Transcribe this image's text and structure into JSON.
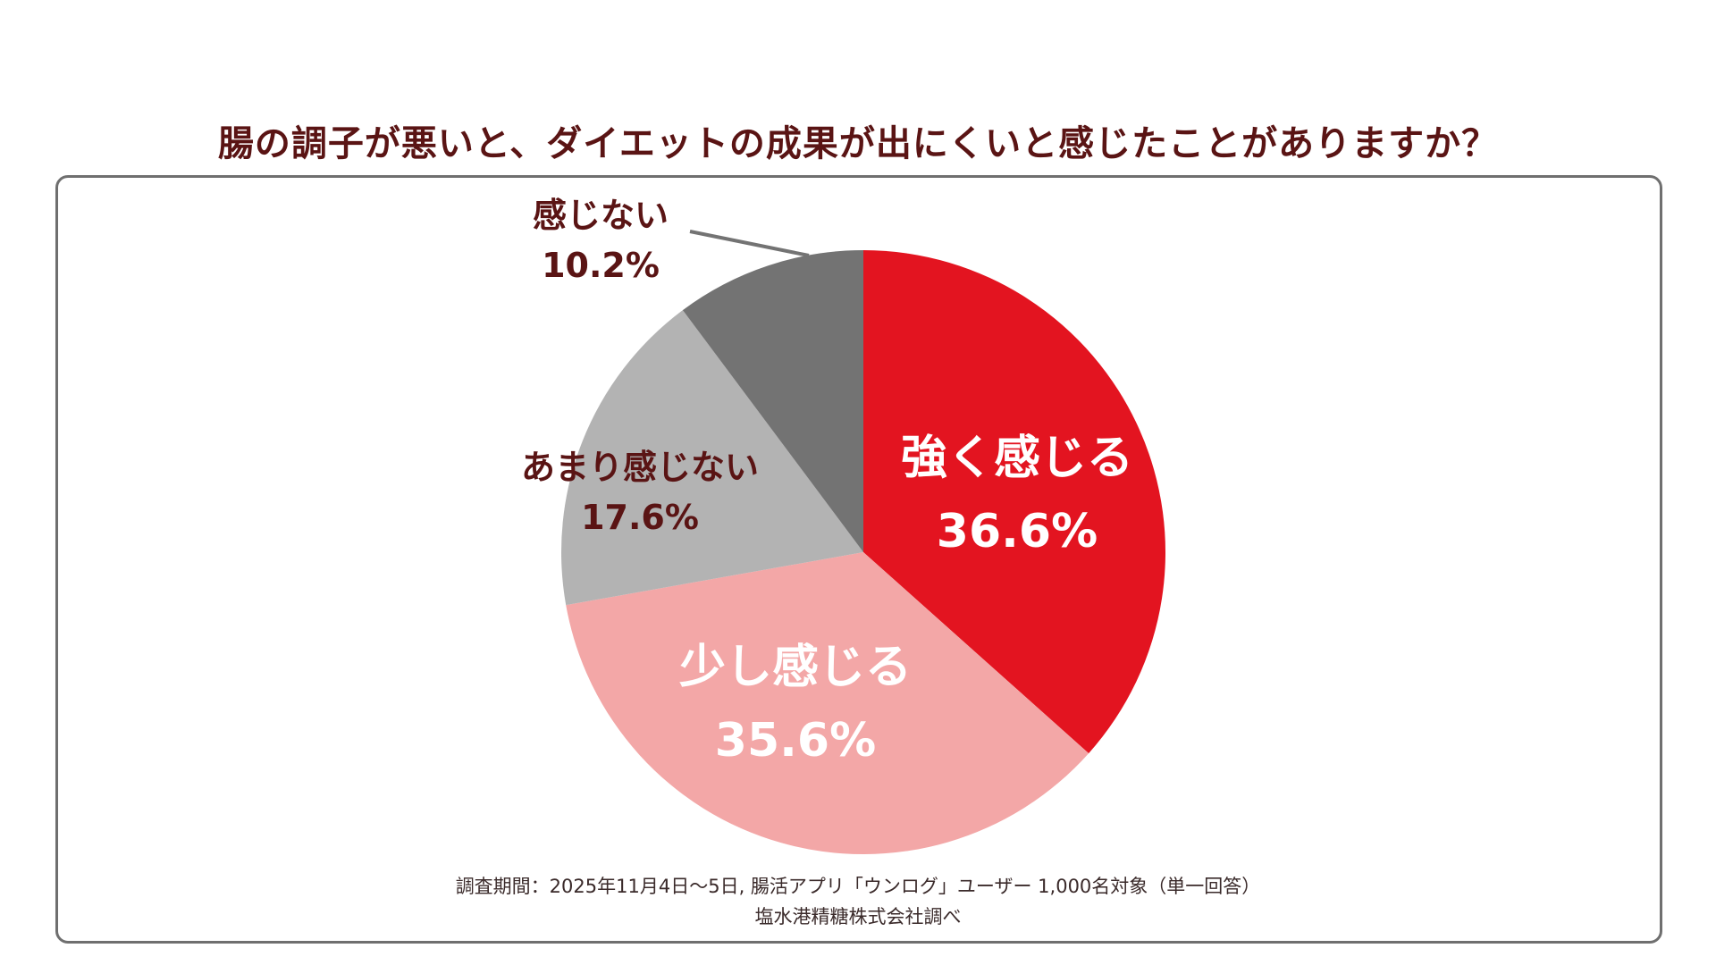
{
  "chart_data": {
    "type": "pie",
    "title": "腸の調子が悪いと、ダイエットの成果が出にくいと感じたことがありますか？",
    "slices": [
      {
        "label": "強く感じる",
        "value": 36.6,
        "value_label": "36.6%",
        "color": "#e31420"
      },
      {
        "label": "少し感じる",
        "value": 35.6,
        "value_label": "35.6%",
        "color": "#f3a7a7"
      },
      {
        "label": "あまり感じない",
        "value": 17.6,
        "value_label": "17.6%",
        "color": "#b3b3b3"
      },
      {
        "label": "感じない",
        "value": 10.2,
        "value_label": "10.2%",
        "color": "#737373"
      }
    ]
  },
  "footer": {
    "note": "調査期間：2025年11月4日～5日, 腸活アプリ「ウンログ」ユーザー 1,000名対象（単一回答）",
    "credit": "塩水港精糖株式会社調べ"
  }
}
